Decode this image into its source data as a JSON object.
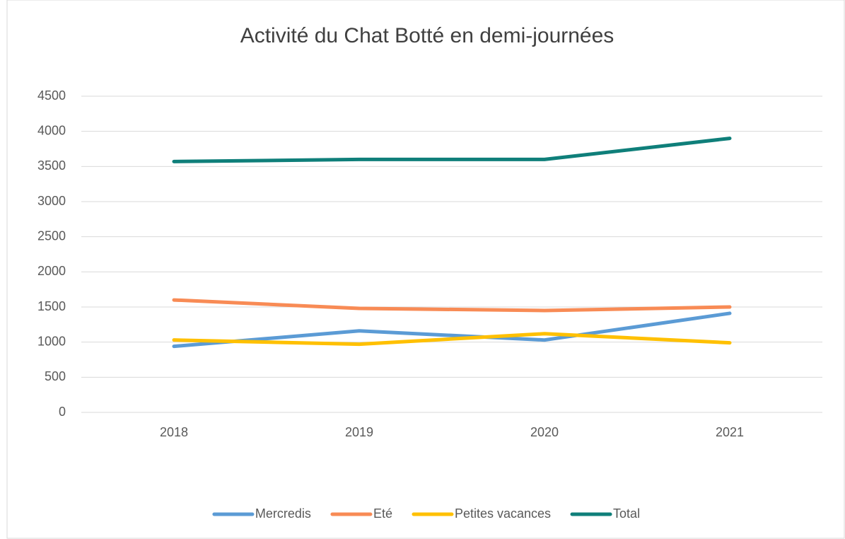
{
  "chart_data": {
    "type": "line",
    "title": "Activité du Chat Botté en demi-journées",
    "categories": [
      "2018",
      "2019",
      "2020",
      "2021"
    ],
    "series": [
      {
        "name": "Mercredis",
        "color": "#5b9bd5",
        "values": [
          940,
          1160,
          1030,
          1410
        ]
      },
      {
        "name": "Eté",
        "color": "#f88b55",
        "values": [
          1600,
          1480,
          1450,
          1500
        ]
      },
      {
        "name": "Petites vacances",
        "color": "#ffc000",
        "values": [
          1030,
          970,
          1120,
          990
        ]
      },
      {
        "name": "Total",
        "color": "#0f7f7a",
        "values": [
          3570,
          3600,
          3600,
          3900
        ]
      }
    ],
    "ylim": [
      0,
      4500
    ],
    "yticks": [
      0,
      500,
      1000,
      1500,
      2000,
      2500,
      3000,
      3500,
      4000,
      4500
    ],
    "grid": true,
    "legend": "bottom"
  }
}
